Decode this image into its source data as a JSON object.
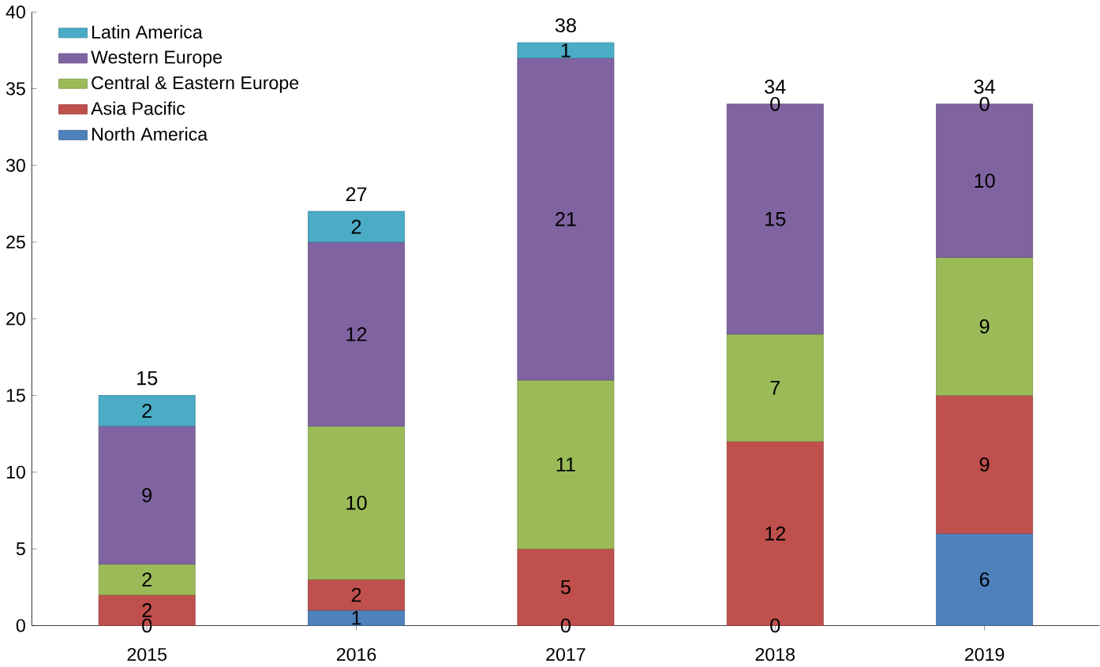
{
  "chart_data": {
    "type": "bar",
    "stacked": true,
    "categories": [
      "2015",
      "2016",
      "2017",
      "2018",
      "2019"
    ],
    "series": [
      {
        "name": "North America",
        "color": "#4f81bd",
        "values": [
          0,
          1,
          0,
          0,
          6
        ],
        "value_labels": [
          null,
          "1",
          null,
          null,
          "6"
        ]
      },
      {
        "name": "Asia Pacific",
        "color": "#c0504d",
        "values": [
          2,
          2,
          5,
          12,
          9
        ],
        "value_labels": [
          "2",
          "2",
          "5",
          "12",
          "9"
        ]
      },
      {
        "name": "Central & Eastern Europe",
        "color": "#9bbb59",
        "values": [
          2,
          10,
          11,
          7,
          9
        ],
        "value_labels": [
          "2",
          "10",
          "11",
          "7",
          "9"
        ]
      },
      {
        "name": "Western Europe",
        "color": "#8064a2",
        "values": [
          9,
          12,
          21,
          15,
          10
        ],
        "value_labels": [
          "9",
          "12",
          "21",
          "15",
          "10"
        ]
      },
      {
        "name": "Latin America",
        "color": "#4bacc6",
        "values": [
          2,
          2,
          1,
          0,
          0
        ],
        "value_labels": [
          "2",
          "2",
          "1",
          null,
          null
        ]
      }
    ],
    "annotations": [
      {
        "text": "0",
        "x": "2015",
        "y": 0
      },
      {
        "text": "0",
        "x": "2017",
        "y": 0
      },
      {
        "text": "0",
        "x": "2018",
        "y": 0
      },
      {
        "text": "0",
        "x": "2018",
        "y": 34
      },
      {
        "text": "0",
        "x": "2019",
        "y": 34
      }
    ],
    "totals": [
      "15",
      "27",
      "38",
      "34",
      "34"
    ],
    "ylim": [
      0,
      40
    ],
    "yticks": [
      0,
      5,
      10,
      15,
      20,
      25,
      30,
      35,
      40
    ],
    "grid": false,
    "legend": "top left"
  }
}
